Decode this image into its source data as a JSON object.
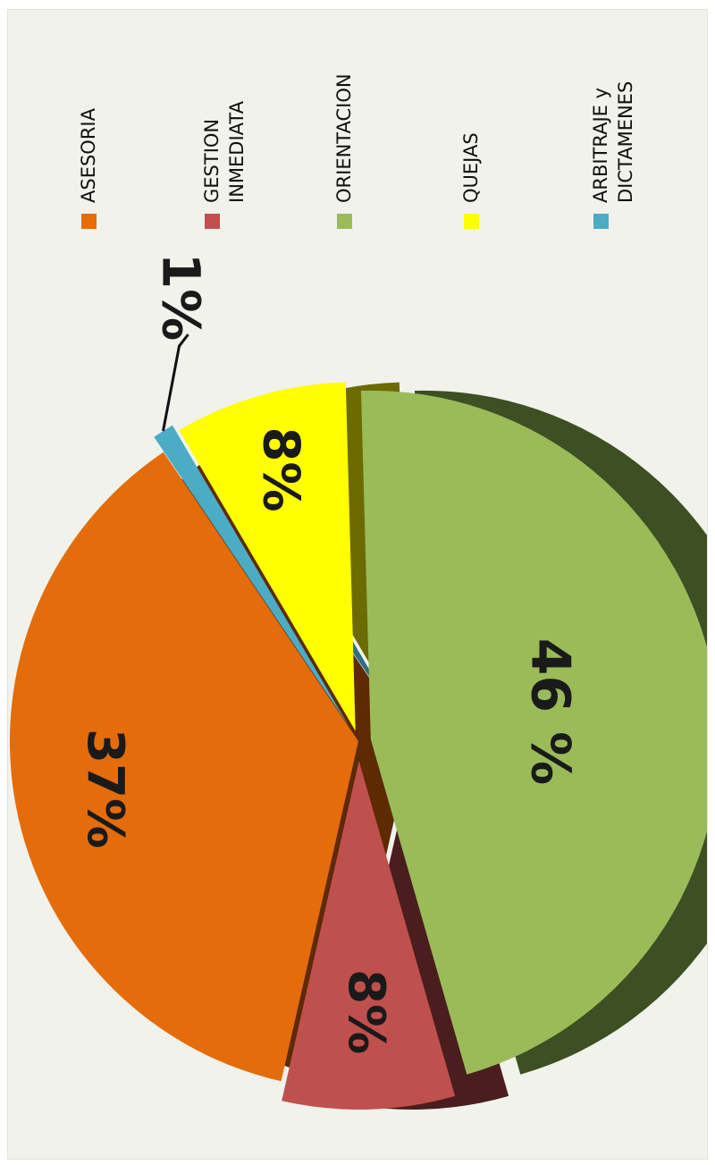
{
  "chart_data": {
    "type": "pie",
    "title": "",
    "exploded": true,
    "three_d": true,
    "rotation": "rotated 90 degrees clockwise",
    "legend_position": "right",
    "slices": [
      {
        "name": "ASESORIA",
        "value": 37,
        "label": "37%",
        "color": "#e46c0a",
        "shade": "#5d2a02"
      },
      {
        "name": "GESTION INMEDIATA",
        "value": 8,
        "label": "8%",
        "color": "#c0504d",
        "shade": "#4a1d1e"
      },
      {
        "name": "ORIENTACION",
        "value": 46,
        "label": "46 %",
        "color": "#9bbb59",
        "shade": "#3d4f23"
      },
      {
        "name": "QUEJAS",
        "value": 8,
        "label": "8%",
        "color": "#ffff00",
        "shade": "#6b6b00"
      },
      {
        "name": "ARBITRAJE y DICTAMENES",
        "value": 1,
        "label": "1%",
        "color": "#4bacc6",
        "shade": "#2e6e80"
      }
    ],
    "legend": [
      {
        "lines": [
          "ASESORIA"
        ],
        "color": "#e46c0a"
      },
      {
        "lines": [
          "GESTION",
          "INMEDIATA"
        ],
        "color": "#c0504d"
      },
      {
        "lines": [
          "ORIENTACION"
        ],
        "color": "#9bbb59"
      },
      {
        "lines": [
          "QUEJAS"
        ],
        "color": "#ffff00"
      },
      {
        "lines": [
          "ARBITRAJE y",
          "DICTAMENES"
        ],
        "color": "#4bacc6"
      }
    ]
  }
}
